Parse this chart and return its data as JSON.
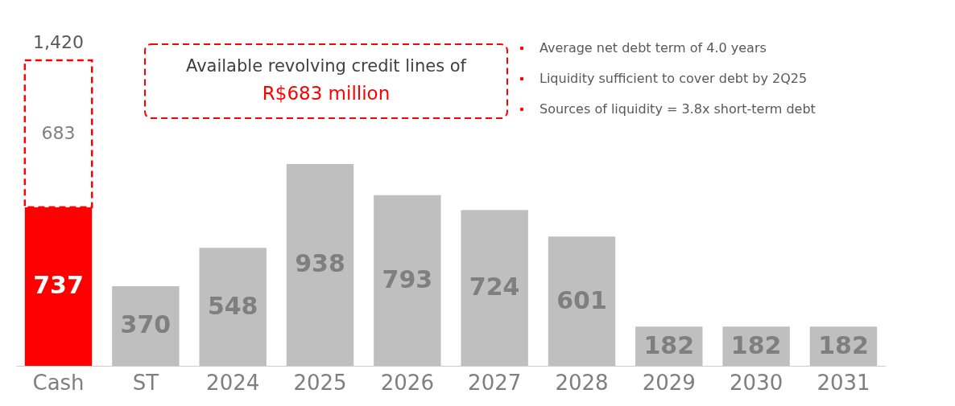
{
  "chart_data": {
    "type": "bar",
    "stacked": true,
    "data_labels": true,
    "grid": false,
    "categories": [
      "Cash",
      "ST",
      "2024",
      "2025",
      "2026",
      "2027",
      "2028",
      "2029",
      "2030",
      "2031"
    ],
    "series": [
      {
        "colors": [
          "#ff0000",
          "#bfbfbf",
          "#bfbfbf",
          "#bfbfbf",
          "#bfbfbf",
          "#bfbfbf",
          "#bfbfbf",
          "#bfbfbf",
          "#bfbfbf",
          "#bfbfbf"
        ],
        "values": [
          737,
          370,
          548,
          938,
          793,
          724,
          601,
          182,
          182,
          182
        ]
      },
      {
        "color": "#ff0000",
        "line_style": "dashed",
        "values": [
          683,
          null,
          null,
          null,
          null,
          null,
          null,
          null,
          null,
          null
        ]
      }
    ],
    "totals": [
      "1,420",
      null,
      null,
      null,
      null,
      null,
      null,
      null,
      null,
      null
    ],
    "annotations": [
      "Available revolving credit lines of",
      "R$683 million",
      "Average net debt term of 4.0 years",
      "Liquidity sufficient to cover debt by 2Q25",
      "Sources of liquidity = 3.8x short-term debt"
    ]
  }
}
